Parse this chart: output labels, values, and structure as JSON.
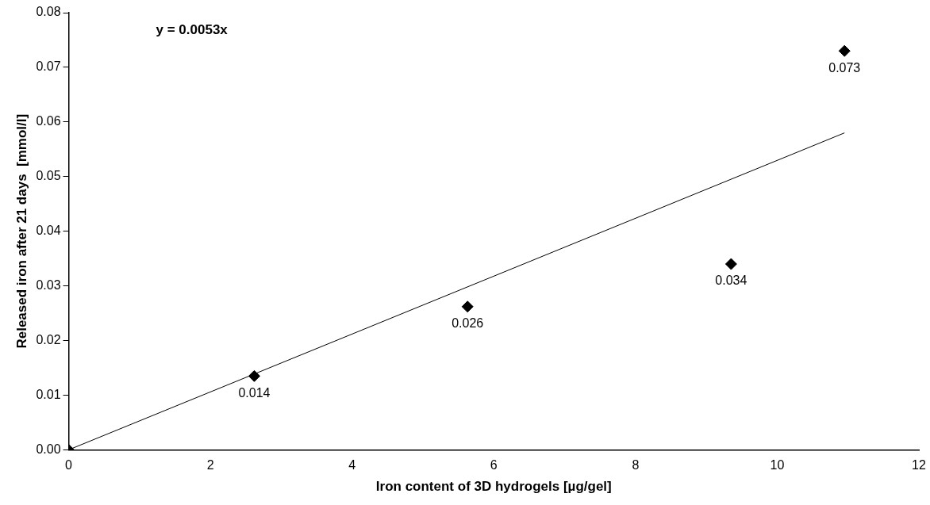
{
  "chart_data": {
    "type": "scatter",
    "xlabel": "Iron content of 3D hydrogels [µg/gel]",
    "ylabel": "Released iron after 21 days  [mmol/l]",
    "xlim": [
      0,
      12
    ],
    "xticks": [
      0,
      2,
      4,
      6,
      8,
      10,
      12
    ],
    "ylim": [
      0,
      0.08
    ],
    "yticks": [
      {
        "value": 0,
        "label": "0.00"
      },
      {
        "value": 0.01,
        "label": "0.01"
      },
      {
        "value": 0.02,
        "label": "0.02"
      },
      {
        "value": 0.03,
        "label": "0.03"
      },
      {
        "value": 0.04,
        "label": "0.04"
      },
      {
        "value": 0.05,
        "label": "0.05"
      },
      {
        "value": 0.06,
        "label": "0.06"
      },
      {
        "value": 0.07,
        "label": "0.07"
      },
      {
        "value": 0.08,
        "label": "0.08"
      }
    ],
    "grid": false,
    "legend": false,
    "marker": "diamond",
    "annotations": [
      "y = 0.0053x"
    ],
    "series": [
      {
        "color": "#000000",
        "x": [
          0,
          2.62,
          5.63,
          9.35,
          10.95
        ],
        "values": [
          0,
          0.0135,
          0.0262,
          0.034,
          0.073
        ],
        "value_labels": [
          null,
          "0.014",
          "0.026",
          "0.034",
          "0.073"
        ]
      },
      {
        "type": "line",
        "color": "#000000",
        "x": [
          0,
          10.95
        ],
        "values": [
          0,
          0.058
        ],
        "marker": "none",
        "line_style": "solid"
      }
    ]
  }
}
